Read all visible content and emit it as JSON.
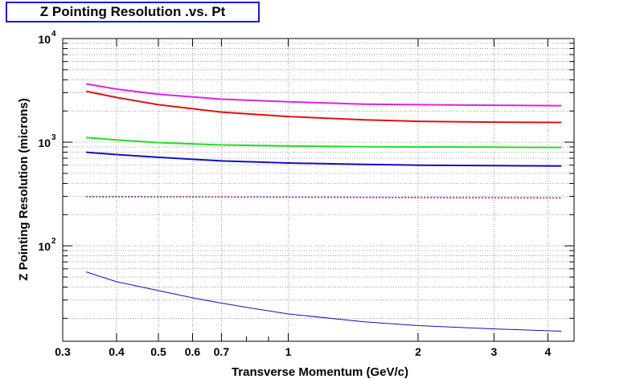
{
  "chart_data": {
    "type": "line",
    "title": "Z Pointing Resolution .vs. Pt",
    "xlabel": "Transverse Momentum (GeV/c)",
    "ylabel": "Z Pointing Resolution (microns)",
    "xscale": "log",
    "yscale": "log",
    "xlim": [
      0.3,
      4.6
    ],
    "ylim": [
      12,
      10000
    ],
    "grid": true,
    "x_ticks": [
      {
        "value": 0.3,
        "label": "0.3"
      },
      {
        "value": 0.4,
        "label": "0.4"
      },
      {
        "value": 0.5,
        "label": "0.5"
      },
      {
        "value": 0.6,
        "label": "0.6"
      },
      {
        "value": 0.7,
        "label": "0.7"
      },
      {
        "value": 1,
        "label": "1"
      },
      {
        "value": 2,
        "label": "2"
      },
      {
        "value": 3,
        "label": "3"
      },
      {
        "value": 4,
        "label": "4"
      }
    ],
    "y_ticks": [
      {
        "value": 100,
        "base": "10",
        "exp": "2"
      },
      {
        "value": 1000,
        "base": "10",
        "exp": "3"
      },
      {
        "value": 10000,
        "base": "10",
        "exp": "4"
      }
    ],
    "series": [
      {
        "color": "#e020e0",
        "width": 2,
        "x": [
          0.34,
          0.4,
          0.5,
          0.7,
          1,
          1.5,
          2,
          3,
          4.3
        ],
        "y": [
          3650,
          3250,
          2900,
          2600,
          2450,
          2330,
          2300,
          2270,
          2250
        ]
      },
      {
        "color": "#e01010",
        "width": 2,
        "x": [
          0.34,
          0.4,
          0.5,
          0.7,
          1,
          1.5,
          2,
          3,
          4.3
        ],
        "y": [
          3100,
          2700,
          2300,
          1950,
          1770,
          1640,
          1590,
          1560,
          1550
        ]
      },
      {
        "color": "#20e020",
        "width": 2,
        "x": [
          0.34,
          0.4,
          0.5,
          0.7,
          1,
          1.5,
          2,
          3,
          4.3
        ],
        "y": [
          1110,
          1050,
          990,
          940,
          920,
          905,
          900,
          895,
          890
        ]
      },
      {
        "color": "#1010c0",
        "width": 2,
        "x": [
          0.34,
          0.4,
          0.5,
          0.7,
          1,
          1.5,
          2,
          3,
          4.3
        ],
        "y": [
          800,
          760,
          715,
          660,
          630,
          610,
          600,
          595,
          590
        ]
      },
      {
        "color": "#a040a0",
        "width": 2,
        "dash": "2,2",
        "x": [
          0.34,
          0.5,
          1,
          2,
          4.3
        ],
        "y": [
          298,
          297,
          295,
          292,
          290
        ]
      },
      {
        "color": "#1010c0",
        "width": 1,
        "x": [
          0.34,
          0.4,
          0.5,
          0.6,
          0.7,
          0.8,
          1,
          1.5,
          2,
          3,
          4.3
        ],
        "y": [
          56,
          45,
          37,
          31.5,
          28,
          25.5,
          22,
          18.5,
          17,
          15.8,
          15
        ]
      }
    ]
  }
}
